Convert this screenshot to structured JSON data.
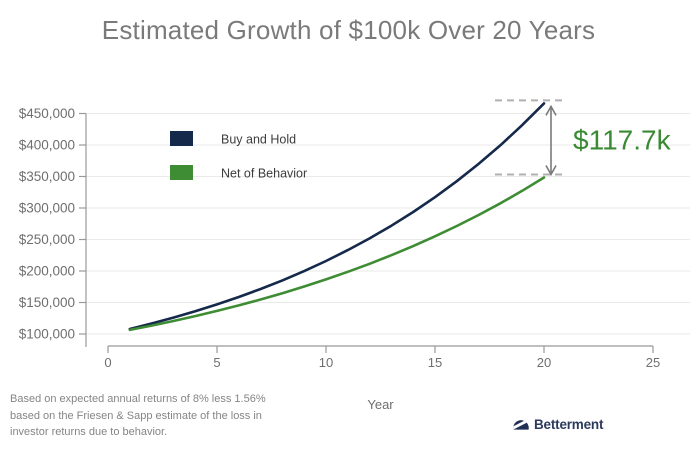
{
  "title": "Estimated Growth of $100k Over 20 Years",
  "footnote": {
    "lines": [
      "Based on expected annual returns of 8% less 1.56%",
      "based on the Friesen & Sapp estimate of the loss in",
      "investor returns due to behavior."
    ]
  },
  "brand": {
    "name": "Betterment",
    "icon": "betterment-dome-icon",
    "color": "#2c3a5c"
  },
  "colors": {
    "title_text": "#7a7a7a",
    "grid": "#eaeaea",
    "axis_line": "#999999",
    "tick_label": "#6f6f6f",
    "legend_text": "#3d3d3d",
    "dash_line": "#b0b0b0",
    "arrow": "#7a7a7a"
  },
  "chart_data": {
    "type": "line",
    "title": "Estimated Growth of $100k Over 20 Years",
    "xlabel": "Year",
    "ylabel": "",
    "grid": "horizontal",
    "legend_position": "inside-top-left",
    "x": [
      1,
      2,
      3,
      4,
      5,
      6,
      7,
      8,
      9,
      10,
      11,
      12,
      13,
      14,
      15,
      16,
      17,
      18,
      19,
      20
    ],
    "x_ticks": [
      0,
      5,
      10,
      15,
      20,
      25
    ],
    "x_tick_labels": [
      "0",
      "5",
      "10",
      "15",
      "20",
      "25"
    ],
    "y_ticks": [
      100000,
      150000,
      200000,
      250000,
      300000,
      350000,
      400000,
      450000
    ],
    "y_tick_labels": [
      "$100,000",
      "$150,000",
      "$200,000",
      "$250,000",
      "$300,000",
      "$350,000",
      "$400,000",
      "$450,000"
    ],
    "xlim": [
      -1,
      26.7
    ],
    "ylim": [
      100000,
      475000
    ],
    "series": [
      {
        "name": "Buy and Hold",
        "color": "#15294b",
        "values": [
          108000,
          116640,
          125971,
          136049,
          146933,
          158687,
          171382,
          185093,
          199900,
          215892,
          233164,
          251817,
          271962,
          293719,
          317217,
          342594,
          370002,
          399602,
          431570,
          466096
        ]
      },
      {
        "name": "Net of Behavior",
        "color": "#3e8c33",
        "values": [
          106440,
          113295,
          120591,
          128357,
          136623,
          145422,
          154787,
          164755,
          175365,
          186658,
          198679,
          211474,
          225093,
          239589,
          255019,
          271442,
          288923,
          307529,
          327334,
          348414
        ]
      }
    ],
    "annotation": {
      "text": "$117.7k",
      "color": "#3a8a33",
      "year": 20,
      "from_value": 348414,
      "to_value": 466096
    }
  }
}
